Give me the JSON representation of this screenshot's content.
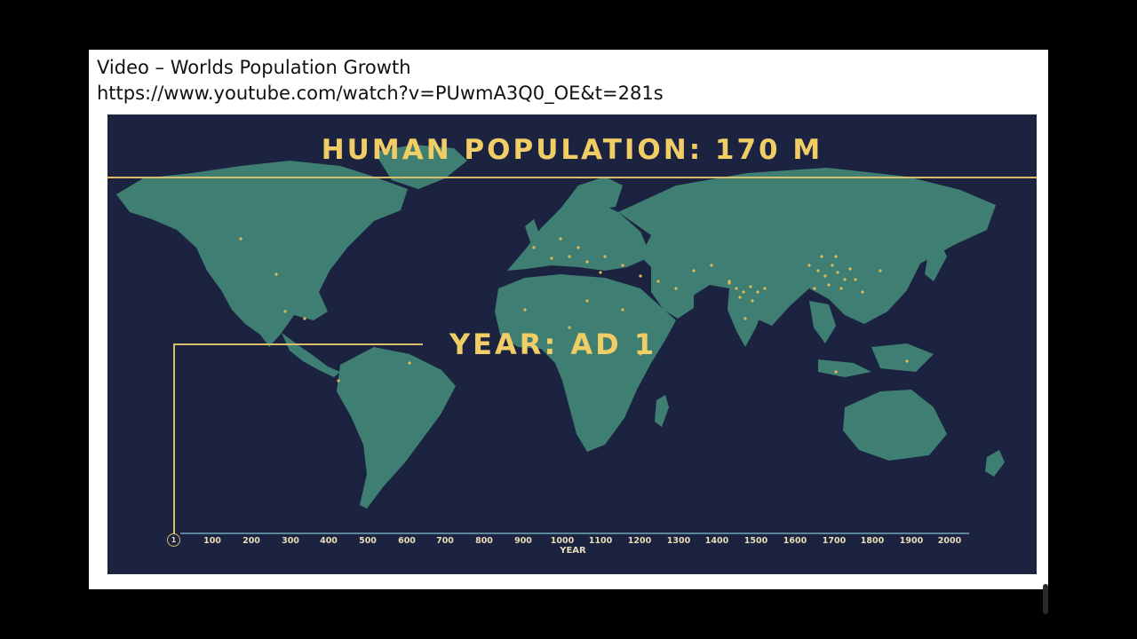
{
  "slide": {
    "caption_title": "Video – Worlds Population Growth",
    "caption_url": "https://www.youtube.com/watch?v=PUwmA3Q0_OE&t=281s"
  },
  "video": {
    "population_label": "HUMAN POPULATION: 170 M",
    "year_label": "YEAR: AD 1",
    "timeline": {
      "marker": "1",
      "ticks": [
        "100",
        "200",
        "300",
        "400",
        "500",
        "600",
        "700",
        "800",
        "900",
        "1000",
        "1100",
        "1200",
        "1300",
        "1400",
        "1500",
        "1600",
        "1700",
        "1800",
        "1900",
        "2000"
      ],
      "axis_label": "YEAR"
    }
  },
  "colors": {
    "background": "#000000",
    "ocean": "#1b2340",
    "land": "#3f7f73",
    "accent_gold": "#f1cd66",
    "dots": "#e0b957"
  }
}
